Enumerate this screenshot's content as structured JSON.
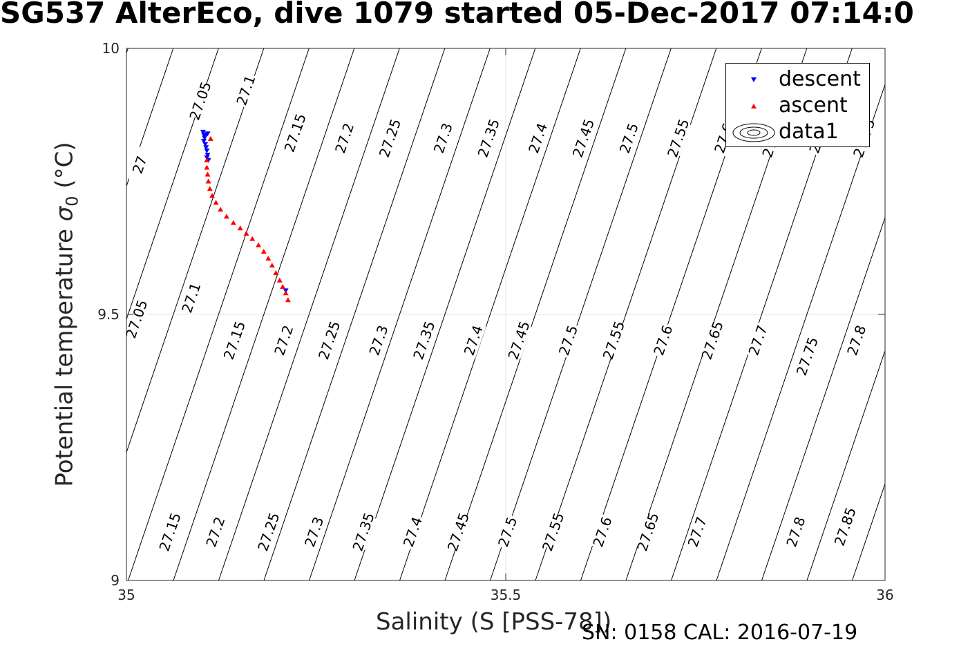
{
  "figure": {
    "title": "SG537 AlterEco, dive 1079 started 05-Dec-2017 07:14:0",
    "footer": "SN: 0158  CAL: 2016-07-19"
  },
  "chart_data": {
    "type": "scatter",
    "xlabel": "Salinity (S [PSS-78])",
    "ylabel_main": "Potential temperature ",
    "ylabel_symbol": "σ",
    "ylabel_sub": "0",
    "ylabel_unit": " (°C)",
    "xlim": [
      35,
      36
    ],
    "ylim": [
      9,
      10
    ],
    "x_ticks": [
      "35",
      "35.5",
      "36"
    ],
    "y_ticks": [
      "9",
      "9.5",
      "10"
    ],
    "grid": true,
    "legend_position": "top-right",
    "legend": [
      "descent",
      "ascent",
      "data1"
    ],
    "series": [
      {
        "name": "descent",
        "color": "#0000ff",
        "marker": "triangle-down",
        "points": [
          [
            35.101,
            9.843
          ],
          [
            35.102,
            9.838
          ],
          [
            35.103,
            9.832
          ],
          [
            35.102,
            9.826
          ],
          [
            35.104,
            9.82
          ],
          [
            35.105,
            9.814
          ],
          [
            35.106,
            9.808
          ],
          [
            35.107,
            9.8
          ],
          [
            35.106,
            9.795
          ],
          [
            35.108,
            9.79
          ],
          [
            35.107,
            9.84
          ],
          [
            35.104,
            9.836
          ],
          [
            35.21,
            9.545
          ]
        ]
      },
      {
        "name": "ascent",
        "color": "#ff0000",
        "marker": "triangle-up",
        "points": [
          [
            35.213,
            9.527
          ],
          [
            35.21,
            9.54
          ],
          [
            35.206,
            9.552
          ],
          [
            35.202,
            9.564
          ],
          [
            35.197,
            9.578
          ],
          [
            35.192,
            9.592
          ],
          [
            35.187,
            9.605
          ],
          [
            35.181,
            9.618
          ],
          [
            35.174,
            9.63
          ],
          [
            35.166,
            9.642
          ],
          [
            35.158,
            9.652
          ],
          [
            35.15,
            9.662
          ],
          [
            35.141,
            9.672
          ],
          [
            35.132,
            9.684
          ],
          [
            35.124,
            9.697
          ],
          [
            35.118,
            9.71
          ],
          [
            35.113,
            9.723
          ],
          [
            35.11,
            9.736
          ],
          [
            35.108,
            9.75
          ],
          [
            35.107,
            9.763
          ],
          [
            35.106,
            9.776
          ],
          [
            35.106,
            9.79
          ],
          [
            35.111,
            9.83
          ]
        ]
      }
    ],
    "isopycnal_labels": [
      [
        "27.05",
        "27.05"
      ],
      [
        "27.1",
        "27.1"
      ],
      [
        "27.15",
        "27.15"
      ],
      [
        "27.2",
        "27.2"
      ],
      [
        "27.25",
        "27.25"
      ],
      [
        "27.3",
        "27.3"
      ],
      [
        "27.35",
        "27.35"
      ],
      [
        "27.4",
        "27.4"
      ],
      [
        "27.45",
        "27.45"
      ],
      [
        "27.5",
        "27.5"
      ],
      [
        "27.55",
        "27.55"
      ],
      [
        "27.6",
        "27.6"
      ],
      [
        "27.65",
        "27.65"
      ],
      [
        "27.7",
        "27.7"
      ],
      [
        "27.75",
        "27.75"
      ],
      [
        "27.8",
        "27.8"
      ],
      [
        "27.85",
        "27.85"
      ]
    ],
    "isopycnal_label_rows": {
      "top": [
        [
          35.02,
          9.78,
          "27"
        ],
        [
          35.1,
          9.9,
          "27.05"
        ],
        [
          35.16,
          9.92,
          "27.1"
        ],
        [
          35.225,
          9.84,
          "27.15"
        ],
        [
          35.29,
          9.83,
          "27.2"
        ],
        [
          35.35,
          9.83,
          "27.25"
        ],
        [
          35.42,
          9.83,
          "27.3"
        ],
        [
          35.48,
          9.83,
          "27.35"
        ],
        [
          35.545,
          9.83,
          "27.4"
        ],
        [
          35.605,
          9.83,
          "27.45"
        ],
        [
          35.665,
          9.83,
          "27.5"
        ],
        [
          35.73,
          9.83,
          "27.55"
        ],
        [
          35.79,
          9.83,
          "27.6"
        ],
        [
          35.855,
          9.83,
          "27.65"
        ],
        [
          35.915,
          9.83,
          "27.7"
        ],
        [
          35.975,
          9.83,
          "27.75"
        ]
      ],
      "middle": [
        [
          35.016,
          9.49,
          "27.05"
        ],
        [
          35.088,
          9.53,
          "27.1"
        ],
        [
          35.145,
          9.45,
          "27.15"
        ],
        [
          35.21,
          9.45,
          "27.2"
        ],
        [
          35.27,
          9.45,
          "27.25"
        ],
        [
          35.335,
          9.45,
          "27.3"
        ],
        [
          35.395,
          9.45,
          "27.35"
        ],
        [
          35.46,
          9.45,
          "27.4"
        ],
        [
          35.52,
          9.45,
          "27.45"
        ],
        [
          35.585,
          9.45,
          "27.5"
        ],
        [
          35.645,
          9.45,
          "27.55"
        ],
        [
          35.71,
          9.45,
          "27.6"
        ],
        [
          35.775,
          9.45,
          "27.65"
        ],
        [
          35.835,
          9.45,
          "27.7"
        ],
        [
          35.9,
          9.42,
          "27.75"
        ],
        [
          35.965,
          9.45,
          "27.8"
        ]
      ],
      "bottom": [
        [
          35.06,
          9.09,
          "27.15"
        ],
        [
          35.12,
          9.09,
          "27.2"
        ],
        [
          35.19,
          9.09,
          "27.25"
        ],
        [
          35.25,
          9.09,
          "27.3"
        ],
        [
          35.315,
          9.09,
          "27.35"
        ],
        [
          35.38,
          9.09,
          "27.4"
        ],
        [
          35.44,
          9.09,
          "27.45"
        ],
        [
          35.505,
          9.09,
          "27.5"
        ],
        [
          35.565,
          9.09,
          "27.55"
        ],
        [
          35.63,
          9.09,
          "27.6"
        ],
        [
          35.69,
          9.09,
          "27.65"
        ],
        [
          35.755,
          9.09,
          "27.7"
        ],
        [
          35.885,
          9.09,
          "27.8"
        ],
        [
          35.95,
          9.1,
          "27.85"
        ]
      ]
    }
  }
}
